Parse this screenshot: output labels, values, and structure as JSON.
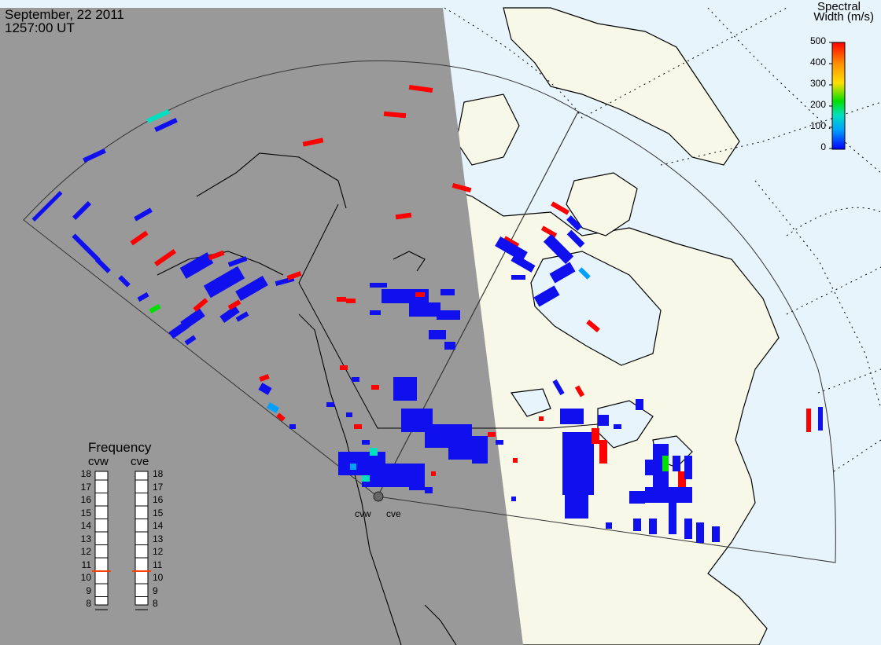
{
  "header": {
    "date": "September, 22 2011",
    "time": "1257:00 UT"
  },
  "colorbar": {
    "title_line1": "Spectral",
    "title_line2": "Width (m/s)",
    "ticks": [
      "500",
      "400",
      "300",
      "200",
      "100",
      "0"
    ],
    "range": [
      0,
      500
    ],
    "colors": [
      "#0000ff",
      "#00a0ff",
      "#00e0c0",
      "#00e000",
      "#ffe000",
      "#ff9000",
      "#ff0000"
    ]
  },
  "frequency_panel": {
    "title": "Frequency",
    "radars": [
      "cvw",
      "cve"
    ],
    "ticks": [
      "18",
      "17",
      "16",
      "15",
      "14",
      "13",
      "12",
      "11",
      "10",
      "9",
      "8"
    ],
    "current_frequency_mhz": {
      "cvw": 10.7,
      "cve": 10.7
    }
  },
  "radar_sites": [
    "cvw",
    "cve"
  ],
  "colors": {
    "night_shade": "#999999",
    "ocean_day": "#e8f4fc",
    "land_day": "#f8f8e8",
    "echo_low": "#1010ee",
    "echo_high": "#ff0000"
  }
}
